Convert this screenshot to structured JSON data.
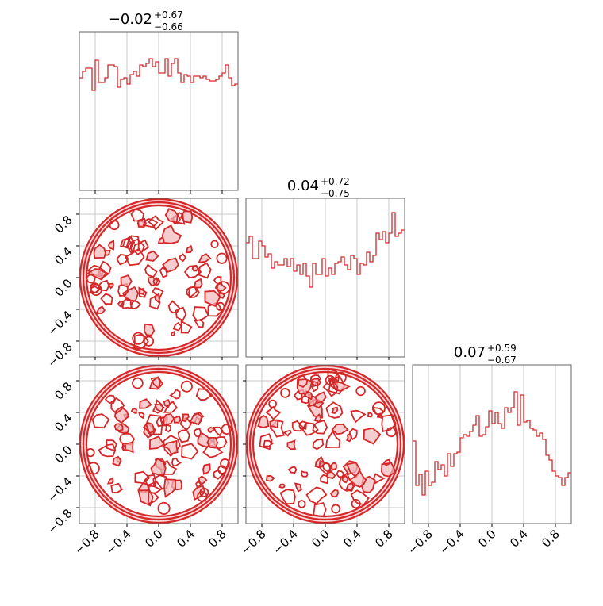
{
  "figure": {
    "type": "corner-plot",
    "accent_color": "#d62728",
    "grid": true
  },
  "chart_data": [
    {
      "type": "histogram",
      "panel": "hist-param-0",
      "ylim": [
        0,
        1
      ],
      "title": {
        "center": "−0.02",
        "plus": "+0.67",
        "minus": "−0.66"
      },
      "xlim": [
        -1,
        1
      ],
      "bin_width": 0.04,
      "bin_start": -1.0,
      "values": [
        0.71,
        0.75,
        0.77,
        0.77,
        0.63,
        0.82,
        0.68,
        0.68,
        0.71,
        0.79,
        0.79,
        0.78,
        0.65,
        0.7,
        0.71,
        0.67,
        0.73,
        0.75,
        0.72,
        0.79,
        0.78,
        0.8,
        0.83,
        0.78,
        0.81,
        0.74,
        0.74,
        0.83,
        0.72,
        0.8,
        0.83,
        0.74,
        0.68,
        0.73,
        0.72,
        0.68,
        0.72,
        0.72,
        0.71,
        0.72,
        0.7,
        0.69,
        0.69,
        0.7,
        0.72,
        0.74,
        0.79,
        0.71,
        0.66,
        0.67
      ]
    },
    {
      "type": "histogram",
      "panel": "hist-param-1",
      "ylim": [
        0,
        1
      ],
      "title": {
        "center": "0.04",
        "plus": "+0.72",
        "minus": "−0.75"
      },
      "xlim": [
        -1,
        1
      ],
      "bin_width": 0.04,
      "bin_start": -1.0,
      "values": [
        0.72,
        0.76,
        0.62,
        0.62,
        0.73,
        0.7,
        0.63,
        0.65,
        0.56,
        0.6,
        0.58,
        0.58,
        0.62,
        0.57,
        0.62,
        0.54,
        0.58,
        0.52,
        0.59,
        0.51,
        0.44,
        0.59,
        0.52,
        0.52,
        0.62,
        0.51,
        0.56,
        0.52,
        0.59,
        0.6,
        0.63,
        0.58,
        0.55,
        0.64,
        0.62,
        0.52,
        0.59,
        0.58,
        0.66,
        0.6,
        0.64,
        0.78,
        0.74,
        0.79,
        0.72,
        0.78,
        0.91,
        0.76,
        0.78,
        0.8
      ]
    },
    {
      "type": "histogram",
      "panel": "hist-param-2",
      "ylim": [
        0,
        1
      ],
      "title": {
        "center": "0.07",
        "plus": "+0.59",
        "minus": "−0.67"
      },
      "xlim": [
        -1,
        1
      ],
      "bin_width": 0.04,
      "bin_start": -1.0,
      "values": [
        0.52,
        0.24,
        0.31,
        0.18,
        0.33,
        0.24,
        0.26,
        0.39,
        0.34,
        0.37,
        0.3,
        0.44,
        0.36,
        0.44,
        0.45,
        0.54,
        0.56,
        0.55,
        0.58,
        0.62,
        0.68,
        0.55,
        0.56,
        0.61,
        0.71,
        0.63,
        0.7,
        0.63,
        0.6,
        0.73,
        0.7,
        0.73,
        0.83,
        0.62,
        0.81,
        0.64,
        0.65,
        0.6,
        0.59,
        0.55,
        0.57,
        0.53,
        0.43,
        0.4,
        0.33,
        0.3,
        0.29,
        0.24,
        0.29,
        0.32
      ]
    },
    {
      "type": "contour",
      "panel": "contour-param-0-vs-param-1",
      "xlim": [
        -1,
        1
      ],
      "ylim": [
        -1,
        1
      ],
      "support": "unit-disk"
    },
    {
      "type": "contour",
      "panel": "contour-param-0-vs-param-2",
      "xlim": [
        -1,
        1
      ],
      "ylim": [
        -1,
        1
      ],
      "support": "unit-disk"
    },
    {
      "type": "contour",
      "panel": "contour-param-1-vs-param-2",
      "xlim": [
        -1,
        1
      ],
      "ylim": [
        -1,
        1
      ],
      "support": "unit-disk"
    }
  ],
  "ticks": {
    "values": [
      -0.8,
      -0.4,
      0.0,
      0.4,
      0.8
    ],
    "labels": [
      "−0.8",
      "−0.4",
      "0.0",
      "0.4",
      "0.8"
    ]
  }
}
